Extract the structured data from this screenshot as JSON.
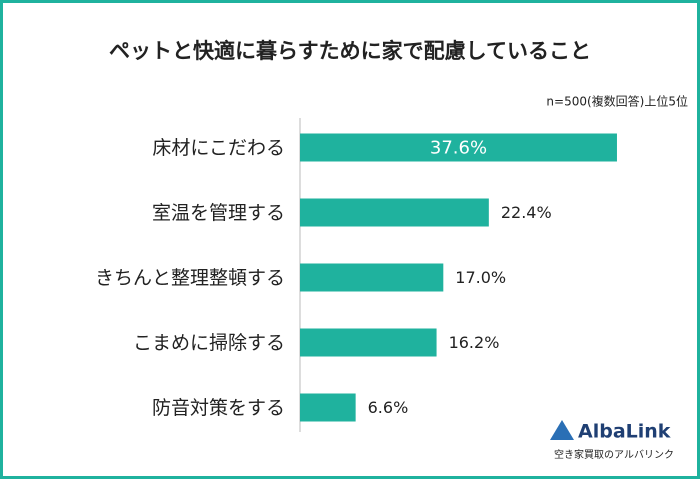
{
  "chart_data": {
    "type": "hbar",
    "title": "ペットと快適に暮らすために家で配慮していること",
    "subtitle": "n=500(複数回答)上位5位",
    "categories": [
      "床材にこだわる",
      "室温を管理する",
      "きちんと整理整頓する",
      "こまめに掃除する",
      "防音対策をする"
    ],
    "values": [
      37.6,
      22.4,
      17.0,
      16.2,
      6.6
    ],
    "value_labels": [
      "37.6%",
      "22.4%",
      "17.0%",
      "16.2%",
      "6.6%"
    ],
    "color": "#1fb29e"
  },
  "logo": {
    "name": "AlbaLink",
    "tagline": "空き家買取のアルバリンク"
  }
}
